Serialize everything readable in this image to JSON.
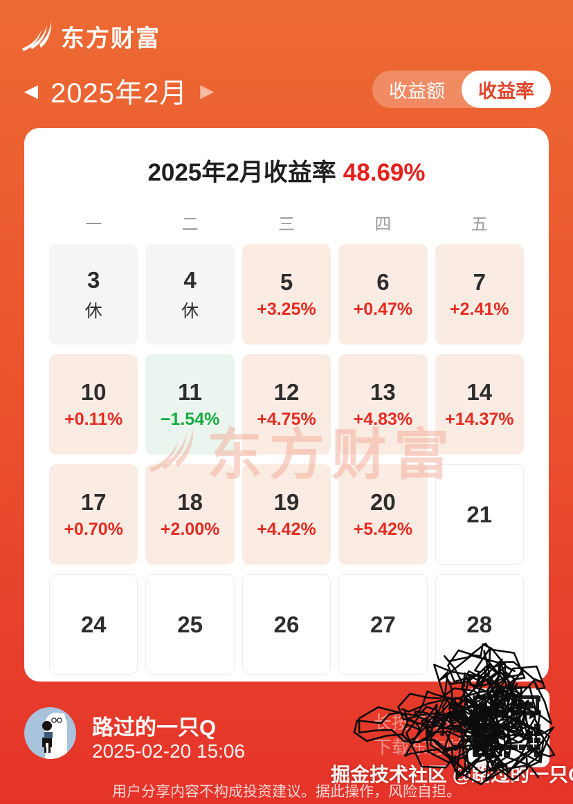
{
  "header": {
    "brand": "东方财富",
    "month_label": "2025年2月",
    "toggle": {
      "amount_label": "收益额",
      "rate_label": "收益率",
      "selected": "收益率"
    }
  },
  "card": {
    "title_prefix": "2025年2月收益率",
    "title_value": "48.69%",
    "weekdays": [
      "一",
      "二",
      "三",
      "四",
      "五"
    ],
    "cells": [
      {
        "day": "3",
        "sub": "休",
        "type": "rest"
      },
      {
        "day": "4",
        "sub": "休",
        "type": "rest"
      },
      {
        "day": "5",
        "sub": "+3.25%",
        "type": "up"
      },
      {
        "day": "6",
        "sub": "+0.47%",
        "type": "up"
      },
      {
        "day": "7",
        "sub": "+2.41%",
        "type": "up"
      },
      {
        "day": "10",
        "sub": "+0.11%",
        "type": "up"
      },
      {
        "day": "11",
        "sub": "−1.54%",
        "type": "down"
      },
      {
        "day": "12",
        "sub": "+4.75%",
        "type": "up"
      },
      {
        "day": "13",
        "sub": "+4.83%",
        "type": "up"
      },
      {
        "day": "14",
        "sub": "+14.37%",
        "type": "up"
      },
      {
        "day": "17",
        "sub": "+0.70%",
        "type": "up"
      },
      {
        "day": "18",
        "sub": "+2.00%",
        "type": "up"
      },
      {
        "day": "19",
        "sub": "+4.42%",
        "type": "up"
      },
      {
        "day": "20",
        "sub": "+5.42%",
        "type": "up"
      },
      {
        "day": "21",
        "sub": "",
        "type": "future"
      },
      {
        "day": "24",
        "sub": "",
        "type": "future"
      },
      {
        "day": "25",
        "sub": "",
        "type": "future"
      },
      {
        "day": "26",
        "sub": "",
        "type": "future"
      },
      {
        "day": "27",
        "sub": "",
        "type": "future"
      },
      {
        "day": "28",
        "sub": "",
        "type": "future"
      }
    ],
    "watermark": "东方财富"
  },
  "footer": {
    "username": "路过的一只Q",
    "timestamp": "2025-02-20 15:06",
    "qr_hint_line1": "长按二维码",
    "qr_hint_line2": "下载东方财富",
    "disclaimer": "用户分享内容不构成投资建议。据此操作，风险自担。",
    "community_watermark": "掘金技术社区 @路过的一只Q"
  },
  "colors": {
    "bg_top": "#ed6a32",
    "bg_bottom": "#e5332a",
    "up_cell": "#fbece3",
    "up_text": "#e62b22",
    "down_cell": "#e9f5ee",
    "down_text": "#17ab3f",
    "rest_cell": "#f5f5f6",
    "title_red": "#e6201c",
    "toggle_active_text": "#e0452c"
  }
}
